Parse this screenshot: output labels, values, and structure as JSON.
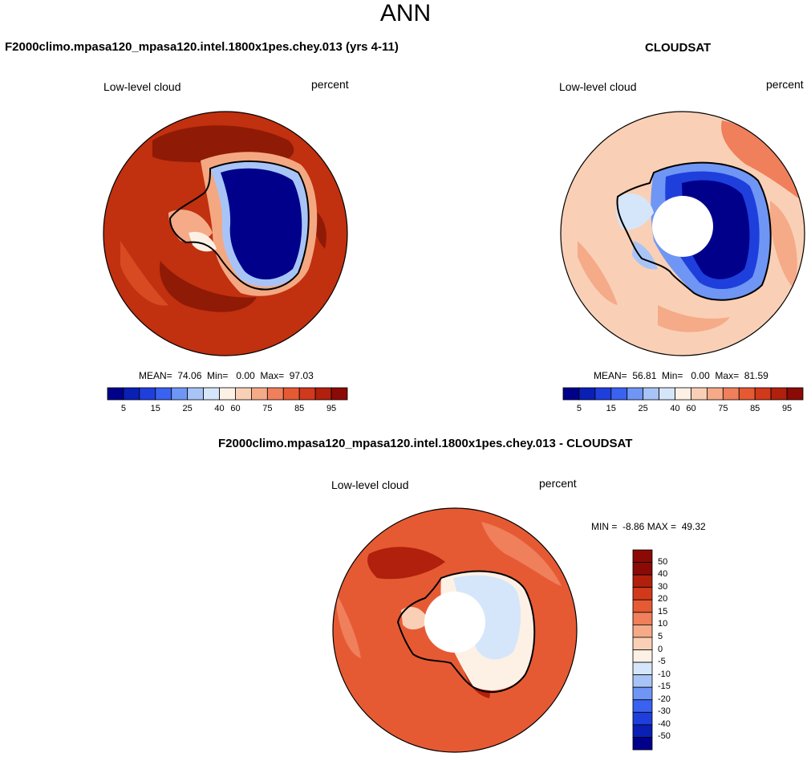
{
  "title": "ANN",
  "panels": {
    "model": {
      "heading": "F2000climo.mpasa120_mpasa120.intel.1800x1pes.chey.013 (yrs 4-11)",
      "left_label": "Low-level cloud",
      "right_label": "percent",
      "stats": "MEAN=  74.06  Min=   0.00  Max=  97.03"
    },
    "obs": {
      "heading": "CLOUDSAT",
      "left_label": "Low-level cloud",
      "right_label": "percent",
      "stats": "MEAN=  56.81  Min=   0.00  Max=  81.59"
    },
    "diff": {
      "heading": "F2000climo.mpasa120_mpasa120.intel.1800x1pes.chey.013 - CLOUDSAT",
      "left_label": "Low-level cloud",
      "right_label": "percent",
      "stats": "MIN =  -8.86 MAX =  49.32"
    }
  },
  "colorbar_abs": {
    "colors": [
      "#00008b",
      "#0a1fb4",
      "#1f3fdc",
      "#3a62f0",
      "#6f96f5",
      "#a8c4f7",
      "#d6e6fa",
      "#fdf1e6",
      "#f9d0b6",
      "#f5aa88",
      "#f07f5c",
      "#e65a33",
      "#d2391b",
      "#b0200c",
      "#8b0a05"
    ],
    "tick_labels": [
      "5",
      "15",
      "25",
      "40",
      "60",
      "75",
      "85",
      "95"
    ]
  },
  "colorbar_diff": {
    "colors": [
      "#8b0a05",
      "#b0200c",
      "#d2391b",
      "#e65a33",
      "#f07f5c",
      "#f5aa88",
      "#f9d0b6",
      "#fdf1e6",
      "#d6e6fa",
      "#a8c4f7",
      "#6f96f5",
      "#3a62f0",
      "#1f3fdc",
      "#0a1fb4",
      "#00008b"
    ],
    "tick_labels": [
      "50",
      "40",
      "30",
      "20",
      "15",
      "10",
      "5",
      "0",
      "-5",
      "-10",
      "-15",
      "-20",
      "-30",
      "-40",
      "-50"
    ]
  }
}
